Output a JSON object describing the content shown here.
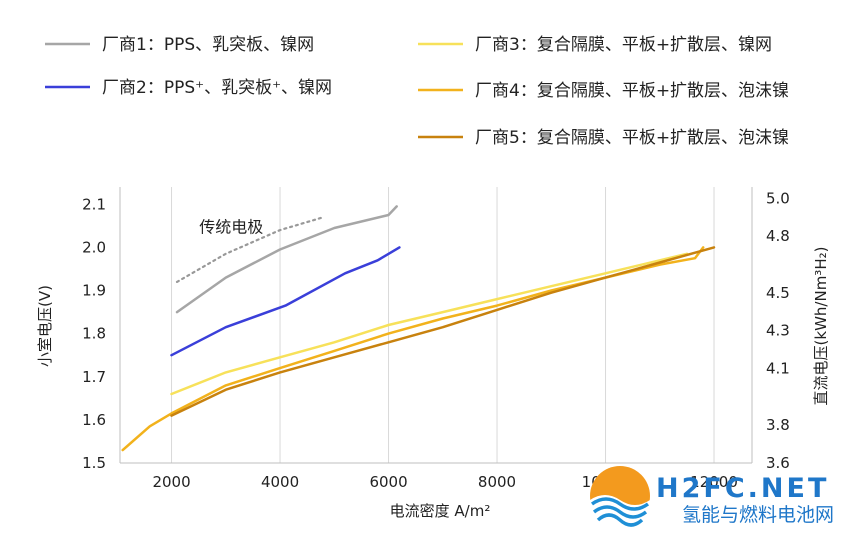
{
  "chart_data": {
    "type": "line",
    "xlabel": "电流密度 A/m²",
    "ylabel": "小室电压(V)",
    "y2label": "直流电压(kWh/Nm³H₂)",
    "xlim": [
      1050,
      12700
    ],
    "ylim": [
      1.5,
      2.14
    ],
    "y2lim": [
      3.6,
      5.06
    ],
    "grid": "vertical",
    "legend_position": "top",
    "x_ticks": [
      2000,
      4000,
      6000,
      8000,
      10000,
      12000
    ],
    "x_tick_labels": [
      "2000",
      "4000",
      "6000",
      "8000",
      "10000",
      "12000"
    ],
    "y_ticks": [
      1.5,
      1.6,
      1.7,
      1.8,
      1.9,
      2.0,
      2.1
    ],
    "y_tick_labels": [
      "1.5",
      "1.6",
      "1.7",
      "1.8",
      "1.9",
      "2.0",
      "2.1"
    ],
    "y2_ticks": [
      3.6,
      3.8,
      4.1,
      4.3,
      4.5,
      4.8,
      5.0
    ],
    "y2_tick_labels": [
      "3.6",
      "3.8",
      "4.1",
      "4.3",
      "4.5",
      "4.8",
      "5.0"
    ],
    "annotations": [
      {
        "text": "传统电极",
        "x": 3100,
        "y": 2.035
      }
    ],
    "series": [
      {
        "name": "厂商1：PPS、乳突板、镍网",
        "color": "#a6a6a6",
        "x": [
          2100,
          3000,
          4000,
          5000,
          6000,
          6150
        ],
        "y": [
          1.85,
          1.93,
          1.995,
          2.045,
          2.075,
          2.095
        ]
      },
      {
        "name": "厂商2：PPS⁺、乳突板⁺、镍网",
        "color": "#3a3fd9",
        "x": [
          2000,
          3000,
          4100,
          5200,
          5800,
          6200
        ],
        "y": [
          1.75,
          1.815,
          1.865,
          1.94,
          1.97,
          2.0
        ]
      },
      {
        "name": "厂商3：复合隔膜、平板+扩散层、镍网",
        "color": "#f7e15a",
        "x": [
          2000,
          3000,
          4000,
          5000,
          6000,
          7000,
          8000,
          9000,
          10000,
          11000,
          11500
        ],
        "y": [
          1.66,
          1.71,
          1.745,
          1.78,
          1.82,
          1.85,
          1.88,
          1.91,
          1.94,
          1.97,
          1.985
        ]
      },
      {
        "name": "厂商4：复合隔膜、平板+扩散层、泡沫镍",
        "color": "#f2b21c",
        "x": [
          1100,
          1600,
          2000,
          3000,
          4000,
          5000,
          6000,
          7000,
          8000,
          9000,
          10000,
          11000,
          11650,
          11800
        ],
        "y": [
          1.53,
          1.585,
          1.615,
          1.68,
          1.72,
          1.76,
          1.8,
          1.835,
          1.865,
          1.9,
          1.93,
          1.96,
          1.975,
          2.0
        ]
      },
      {
        "name": "厂商5：复合隔膜、平板+扩散层、泡沫镍",
        "color": "#c8820e",
        "x": [
          2000,
          3000,
          4000,
          5000,
          6000,
          7000,
          8000,
          9000,
          10000,
          11000,
          12000
        ],
        "y": [
          1.61,
          1.67,
          1.71,
          1.745,
          1.78,
          1.815,
          1.855,
          1.895,
          1.93,
          1.965,
          2.0
        ]
      },
      {
        "name": "传统电极",
        "color": "#999999",
        "style": "dotted",
        "x": [
          2100,
          3000,
          4000,
          4800
        ],
        "y": [
          1.92,
          1.985,
          2.04,
          2.07
        ]
      }
    ]
  },
  "watermark": {
    "text": "H2FC.NET",
    "subtitle": "氢能与燃料电池网"
  }
}
